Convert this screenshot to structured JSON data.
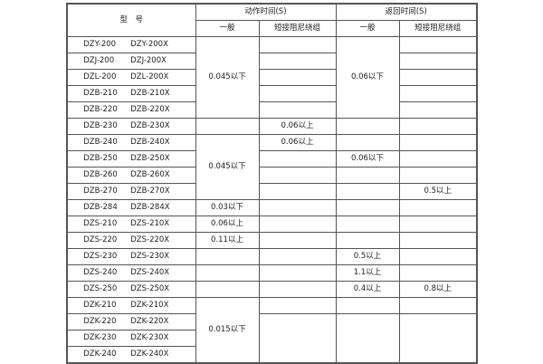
{
  "header": {
    "model": "型　号",
    "action_time": "动作时间(S)",
    "return_time": "返回时间(S)",
    "general": "一般",
    "short_winding": "短接阻尼绕组"
  },
  "rows": [
    {
      "m1": "DZY-200",
      "m2": "DZY-200X",
      "a": "0.045以下",
      "b": "",
      "c": "0.06以下",
      "d": ""
    },
    {
      "m1": "DZJ-200",
      "m2": "DZJ-200X",
      "a": "",
      "b": "",
      "c": "",
      "d": ""
    },
    {
      "m1": "DZL-200",
      "m2": "DZL-200X",
      "a": "",
      "b": "",
      "c": "",
      "d": ""
    },
    {
      "m1": "DZB-210",
      "m2": "DZB-210X",
      "a": "",
      "b": "",
      "c": "",
      "d": ""
    },
    {
      "m1": "DZB-220",
      "m2": "DZB-220X",
      "a": "",
      "b": "",
      "c": "",
      "d": ""
    },
    {
      "m1": "DZB-230",
      "m2": "DZB-230X",
      "a": "",
      "b": "0.06以上",
      "c": "",
      "d": ""
    },
    {
      "m1": "DZB-240",
      "m2": "DZB-240X",
      "a": "0.045以下",
      "b": "0.06以上",
      "c": "",
      "d": ""
    },
    {
      "m1": "DZB-250",
      "m2": "DZB-250X",
      "a": "",
      "b": "",
      "c": "0.06以下",
      "d": ""
    },
    {
      "m1": "DZB-260",
      "m2": "DZB-260X",
      "a": "",
      "b": "",
      "c": "",
      "d": ""
    },
    {
      "m1": "DZB-270",
      "m2": "DZB-270X",
      "a": "",
      "b": "",
      "c": "",
      "d": "0.5以上"
    },
    {
      "m1": "DZB-284",
      "m2": "DZB-284X",
      "a": "0.03以下",
      "b": "",
      "c": "",
      "d": ""
    },
    {
      "m1": "DZS-210",
      "m2": "DZS-210X",
      "a": "0.06以上",
      "b": "",
      "c": "",
      "d": ""
    },
    {
      "m1": "DZS-220",
      "m2": "DZS-220X",
      "a": "0.11以上",
      "b": "",
      "c": "",
      "d": ""
    },
    {
      "m1": "DZS-230",
      "m2": "DZS-230X",
      "a": "",
      "b": "",
      "c": "0.5以上",
      "d": ""
    },
    {
      "m1": "DZS-240",
      "m2": "DZS-240X",
      "a": "",
      "b": "",
      "c": "1.1以上",
      "d": ""
    },
    {
      "m1": "DZS-250",
      "m2": "DZS-250X",
      "a": "",
      "b": "",
      "c": "0.4以上",
      "d": "0.8以上"
    },
    {
      "m1": "DZK-210",
      "m2": "DZK-210X",
      "a": "0.015以下",
      "b": "",
      "c": "",
      "d": ""
    },
    {
      "m1": "DZK-220",
      "m2": "DZK-220X",
      "a": "",
      "b": "",
      "c": "",
      "d": ""
    },
    {
      "m1": "DZK-230",
      "m2": "DZK-230X",
      "a": "",
      "b": "",
      "c": "",
      "d": ""
    },
    {
      "m1": "DZK-240",
      "m2": "DZK-240X",
      "a": "",
      "b": "",
      "c": "",
      "d": ""
    }
  ]
}
